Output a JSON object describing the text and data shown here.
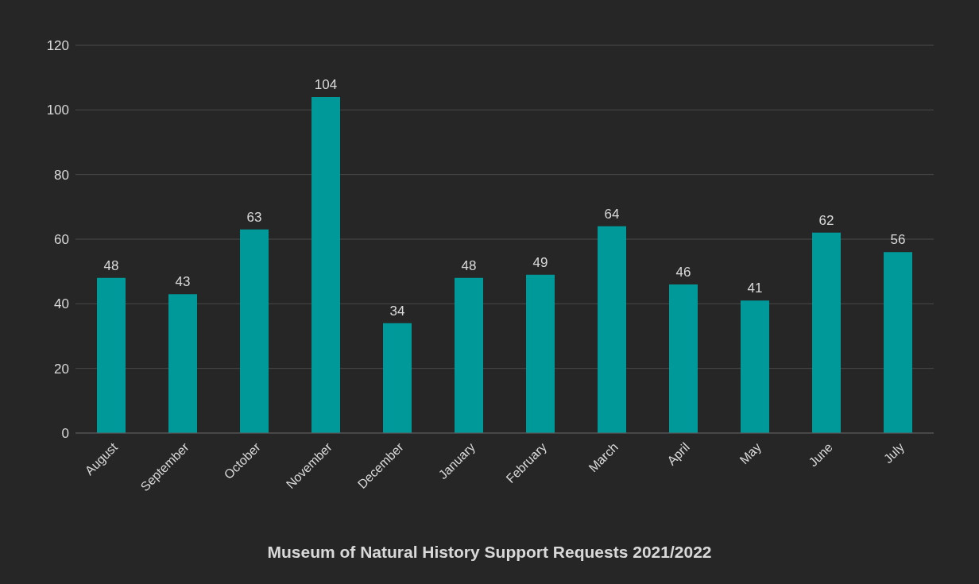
{
  "chart_data": {
    "type": "bar",
    "title": "Museum of Natural History Support Requests 2021/2022",
    "categories": [
      "August",
      "September",
      "October",
      "November",
      "December",
      "January",
      "February",
      "March",
      "April",
      "May",
      "June",
      "July"
    ],
    "values": [
      48,
      43,
      63,
      104,
      34,
      48,
      49,
      64,
      46,
      41,
      62,
      56
    ],
    "color": "#009999",
    "ylim": [
      0,
      120
    ],
    "yticks": [
      0,
      20,
      40,
      60,
      80,
      100,
      120
    ],
    "grid": "y",
    "data_labels": true
  }
}
